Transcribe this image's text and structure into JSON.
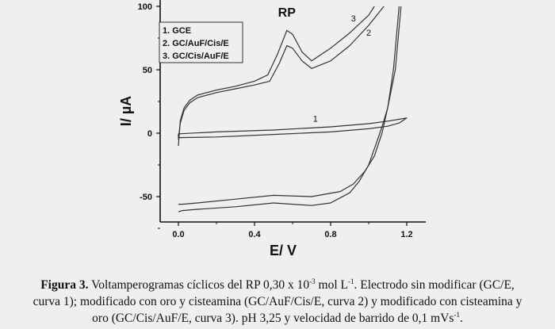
{
  "chart_data": {
    "type": "line",
    "title": "",
    "xlabel": "E/ V",
    "ylabel": "I/ µA",
    "xlim": [
      -0.1,
      1.3
    ],
    "ylim": [
      -70,
      105
    ],
    "xticks": [
      "0.0",
      "0.4",
      "0.8",
      "1.2"
    ],
    "xtick_values": [
      0.0,
      0.4,
      0.8,
      1.2
    ],
    "yticks": [
      "100",
      "50",
      "0",
      "-50"
    ],
    "ytick_values": [
      100,
      50,
      0,
      -50
    ],
    "grid": false,
    "legend_position": "top-left",
    "legend": [
      "1. GCE",
      "2. GC/AuF/Cis/E",
      "3. GC/Cis/AuF/E"
    ],
    "annotations": [
      {
        "text": "RP",
        "x": 0.57,
        "y": 92
      },
      {
        "text": "3",
        "x": 0.92,
        "y": 88
      },
      {
        "text": "2",
        "x": 1.0,
        "y": 77
      },
      {
        "text": "1",
        "x": 0.72,
        "y": 9
      }
    ],
    "series": [
      {
        "label": "1",
        "x": [
          0,
          0.2,
          0.5,
          0.8,
          1.0,
          1.1,
          1.2,
          1.16,
          1.1,
          1.0,
          0.8,
          0.5,
          0.2,
          0,
          0
        ],
        "y": [
          -0.5,
          1,
          2.5,
          5,
          7.5,
          9.5,
          12,
          8,
          5.5,
          3.5,
          1,
          -1,
          -3,
          -3.5,
          -0.5
        ]
      },
      {
        "label": "2",
        "x": [
          0,
          0.01,
          0.03,
          0.06,
          0.1,
          0.2,
          0.3,
          0.4,
          0.48,
          0.53,
          0.57,
          0.6,
          0.65,
          0.7,
          0.8,
          0.9,
          1.0,
          1.08,
          null,
          1.16,
          1.13,
          1.1,
          1.07,
          1.04,
          1.0,
          0.95,
          0.9,
          0.8,
          0.7,
          0.5,
          0.3,
          0.1,
          0.02,
          0
        ],
        "y": [
          -5,
          8,
          18,
          24,
          28,
          32,
          35,
          38,
          41,
          55,
          69,
          67,
          57,
          51,
          57,
          69,
          85,
          100,
          null,
          100,
          50,
          20,
          5,
          -8,
          -25,
          -38,
          -47,
          -55,
          -57,
          -55,
          -58,
          -60,
          -61,
          -62
        ]
      },
      {
        "label": "3",
        "x": [
          0,
          0.01,
          0.03,
          0.06,
          0.1,
          0.2,
          0.3,
          0.4,
          0.47,
          0.52,
          0.57,
          0.6,
          0.65,
          0.7,
          0.8,
          0.9,
          1.0,
          1.03,
          null,
          1.17,
          1.14,
          1.1,
          1.07,
          1.03,
          0.98,
          0.92,
          0.85,
          0.7,
          0.5,
          0.3,
          0.1,
          0.02,
          0
        ],
        "y": [
          -10,
          10,
          20,
          26,
          30,
          34,
          37,
          41,
          46,
          62,
          81,
          78,
          64,
          57,
          67,
          79,
          93,
          100,
          null,
          100,
          50,
          20,
          0,
          -18,
          -30,
          -40,
          -46,
          -50,
          -49,
          -52,
          -55,
          -56,
          -56
        ]
      }
    ]
  },
  "caption": {
    "label": "Figura 3.",
    "l1a": " Voltamperogramas cíclicos del RP 0,30 x 10",
    "l1sup1": "-3",
    "l1b": " mol L",
    "l1sup2": "-1",
    "l1c": ". Electrodo sin modificar (GC/E,",
    "l2": "curva 1); modificado con oro y cisteamina (GC/AuF/Cis/E, curva 2) y modificado con cisteamina y",
    "l3a": "oro (GC/Cis/AuF/E, curva 3). pH 3,25 y velocidad de barrido de 0,1 mVs",
    "l3sup": "-1",
    "l3b": "."
  }
}
